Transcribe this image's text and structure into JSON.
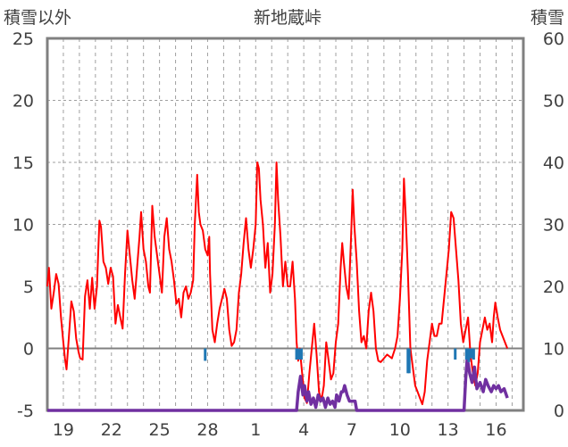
{
  "chart_data": {
    "type": "line",
    "title": "新地蔵峠",
    "left_axis_label": "積雪以外",
    "right_axis_label": "積雪",
    "left_ylim": [
      -5,
      25
    ],
    "right_ylim": [
      0,
      60
    ],
    "left_ticks": [
      "25",
      "20",
      "15",
      "10",
      "5",
      "0",
      "-5"
    ],
    "right_ticks": [
      "60",
      "50",
      "40",
      "30",
      "20",
      "10",
      "0"
    ],
    "x_tick_labels": [
      "19",
      "22",
      "25",
      "28",
      "1",
      "4",
      "7",
      "10",
      "13",
      "16"
    ],
    "x_tick_days": [
      1,
      4,
      7,
      10,
      13,
      16,
      19,
      22,
      25,
      28
    ],
    "xlim_days": [
      0,
      29.7
    ],
    "grid": true,
    "colors": {
      "temperature": "#ff0000",
      "precipitation": "#1f77b4",
      "snow_depth": "#7030a0",
      "axis": "#808080",
      "grid": "#a0a0a0",
      "text": "#404040"
    },
    "series": [
      {
        "type": "line",
        "axis": "left",
        "color": "#ff0000",
        "points": [
          [
            0.0,
            5.0
          ],
          [
            0.1,
            6.5
          ],
          [
            0.25,
            3.2
          ],
          [
            0.4,
            4.5
          ],
          [
            0.55,
            6.0
          ],
          [
            0.7,
            5.2
          ],
          [
            0.85,
            2.5
          ],
          [
            1.0,
            0.5
          ],
          [
            1.1,
            -0.8
          ],
          [
            1.2,
            -1.7
          ],
          [
            1.35,
            1.0
          ],
          [
            1.5,
            3.8
          ],
          [
            1.65,
            3.0
          ],
          [
            1.8,
            0.8
          ],
          [
            1.95,
            -0.3
          ],
          [
            2.05,
            -0.8
          ],
          [
            2.2,
            -0.9
          ],
          [
            2.35,
            4.2
          ],
          [
            2.5,
            5.5
          ],
          [
            2.65,
            3.2
          ],
          [
            2.8,
            5.7
          ],
          [
            2.95,
            3.2
          ],
          [
            3.1,
            5.0
          ],
          [
            3.25,
            10.3
          ],
          [
            3.35,
            9.8
          ],
          [
            3.5,
            7.0
          ],
          [
            3.65,
            6.5
          ],
          [
            3.8,
            5.2
          ],
          [
            3.95,
            6.5
          ],
          [
            4.1,
            5.8
          ],
          [
            4.25,
            2.0
          ],
          [
            4.4,
            3.5
          ],
          [
            4.55,
            2.5
          ],
          [
            4.7,
            1.6
          ],
          [
            4.85,
            6.0
          ],
          [
            5.0,
            9.5
          ],
          [
            5.15,
            7.5
          ],
          [
            5.3,
            5.5
          ],
          [
            5.45,
            4.0
          ],
          [
            5.6,
            6.5
          ],
          [
            5.75,
            9.0
          ],
          [
            5.85,
            11.0
          ],
          [
            6.0,
            8.0
          ],
          [
            6.15,
            7.0
          ],
          [
            6.3,
            5.0
          ],
          [
            6.4,
            4.5
          ],
          [
            6.55,
            11.5
          ],
          [
            6.7,
            9.0
          ],
          [
            6.85,
            7.5
          ],
          [
            7.0,
            6.0
          ],
          [
            7.15,
            4.5
          ],
          [
            7.3,
            9.0
          ],
          [
            7.45,
            10.5
          ],
          [
            7.6,
            8.0
          ],
          [
            7.75,
            7.0
          ],
          [
            7.9,
            5.5
          ],
          [
            8.05,
            3.6
          ],
          [
            8.2,
            4.0
          ],
          [
            8.35,
            2.5
          ],
          [
            8.5,
            4.5
          ],
          [
            8.65,
            5.0
          ],
          [
            8.8,
            4.0
          ],
          [
            8.95,
            4.5
          ],
          [
            9.1,
            5.5
          ],
          [
            9.2,
            10.0
          ],
          [
            9.35,
            14.0
          ],
          [
            9.45,
            11.0
          ],
          [
            9.55,
            10.0
          ],
          [
            9.7,
            9.5
          ],
          [
            9.85,
            8.0
          ],
          [
            10.0,
            7.5
          ],
          [
            10.1,
            9.0
          ],
          [
            10.15,
            6.0
          ],
          [
            10.3,
            1.5
          ],
          [
            10.45,
            0.5
          ],
          [
            10.6,
            2.0
          ],
          [
            10.75,
            3.2
          ],
          [
            10.9,
            4.0
          ],
          [
            11.05,
            4.8
          ],
          [
            11.2,
            4.0
          ],
          [
            11.35,
            1.5
          ],
          [
            11.5,
            0.2
          ],
          [
            11.65,
            0.5
          ],
          [
            11.8,
            1.5
          ],
          [
            11.95,
            4.5
          ],
          [
            12.1,
            6.0
          ],
          [
            12.25,
            8.5
          ],
          [
            12.4,
            10.5
          ],
          [
            12.55,
            8.0
          ],
          [
            12.7,
            6.5
          ],
          [
            12.85,
            8.0
          ],
          [
            13.0,
            10.0
          ],
          [
            13.1,
            15.0
          ],
          [
            13.2,
            14.5
          ],
          [
            13.3,
            12.0
          ],
          [
            13.45,
            10.0
          ],
          [
            13.6,
            6.5
          ],
          [
            13.75,
            8.5
          ],
          [
            13.9,
            4.5
          ],
          [
            14.05,
            6.0
          ],
          [
            14.2,
            10.0
          ],
          [
            14.3,
            15.0
          ],
          [
            14.4,
            12.0
          ],
          [
            14.55,
            9.0
          ],
          [
            14.7,
            5.0
          ],
          [
            14.85,
            7.0
          ],
          [
            15.0,
            5.0
          ],
          [
            15.15,
            5.0
          ],
          [
            15.3,
            7.0
          ],
          [
            15.45,
            4.0
          ],
          [
            15.55,
            0.5
          ],
          [
            15.65,
            -1.0
          ],
          [
            15.75,
            0.0
          ],
          [
            15.9,
            -2.0
          ],
          [
            16.05,
            -4.0
          ],
          [
            16.2,
            -4.4
          ],
          [
            16.35,
            -2.0
          ],
          [
            16.5,
            0.0
          ],
          [
            16.65,
            2.0
          ],
          [
            16.8,
            -0.5
          ],
          [
            16.95,
            -3.5
          ],
          [
            17.1,
            -4.2
          ],
          [
            17.25,
            -3.0
          ],
          [
            17.4,
            0.5
          ],
          [
            17.55,
            -1.0
          ],
          [
            17.7,
            -2.5
          ],
          [
            17.85,
            -2.0
          ],
          [
            18.0,
            0.5
          ],
          [
            18.15,
            2.0
          ],
          [
            18.3,
            6.5
          ],
          [
            18.4,
            8.5
          ],
          [
            18.5,
            7.0
          ],
          [
            18.65,
            5.0
          ],
          [
            18.8,
            4.0
          ],
          [
            18.95,
            9.0
          ],
          [
            19.05,
            12.8
          ],
          [
            19.15,
            10.0
          ],
          [
            19.3,
            7.0
          ],
          [
            19.45,
            3.0
          ],
          [
            19.6,
            0.5
          ],
          [
            19.75,
            1.0
          ],
          [
            19.9,
            0.0
          ],
          [
            20.05,
            3.0
          ],
          [
            20.2,
            4.5
          ],
          [
            20.35,
            3.0
          ],
          [
            20.5,
            0.0
          ],
          [
            20.65,
            -1.0
          ],
          [
            20.8,
            -1.1
          ],
          [
            21.0,
            -0.8
          ],
          [
            21.2,
            -0.5
          ],
          [
            21.5,
            -0.8
          ],
          [
            21.7,
            0.0
          ],
          [
            21.85,
            1.0
          ],
          [
            22.0,
            4.0
          ],
          [
            22.15,
            8.0
          ],
          [
            22.25,
            13.7
          ],
          [
            22.35,
            11.0
          ],
          [
            22.5,
            6.0
          ],
          [
            22.65,
            0.0
          ],
          [
            22.8,
            -1.5
          ],
          [
            22.95,
            -3.0
          ],
          [
            23.1,
            -3.5
          ],
          [
            23.25,
            -4.0
          ],
          [
            23.4,
            -4.5
          ],
          [
            23.55,
            -3.5
          ],
          [
            23.7,
            -1.0
          ],
          [
            23.85,
            0.5
          ],
          [
            24.0,
            2.0
          ],
          [
            24.15,
            1.0
          ],
          [
            24.3,
            1.0
          ],
          [
            24.45,
            2.0
          ],
          [
            24.6,
            2.0
          ],
          [
            24.75,
            4.0
          ],
          [
            24.9,
            6.0
          ],
          [
            25.05,
            8.0
          ],
          [
            25.2,
            11.0
          ],
          [
            25.35,
            10.5
          ],
          [
            25.5,
            8.0
          ],
          [
            25.65,
            5.5
          ],
          [
            25.8,
            2.0
          ],
          [
            25.95,
            0.5
          ],
          [
            26.1,
            1.5
          ],
          [
            26.25,
            2.5
          ],
          [
            26.4,
            -0.5
          ],
          [
            26.55,
            -2.0
          ],
          [
            26.7,
            -3.0
          ],
          [
            26.85,
            -2.0
          ],
          [
            27.0,
            0.5
          ],
          [
            27.15,
            1.5
          ],
          [
            27.3,
            2.5
          ],
          [
            27.45,
            1.5
          ],
          [
            27.6,
            2.0
          ],
          [
            27.75,
            0.5
          ],
          [
            27.85,
            2.5
          ],
          [
            27.95,
            3.7
          ],
          [
            28.1,
            2.5
          ],
          [
            28.25,
            1.5
          ],
          [
            28.4,
            1.0
          ],
          [
            28.55,
            0.5
          ],
          [
            28.7,
            0.0
          ]
        ]
      },
      {
        "type": "line",
        "axis": "right",
        "color": "#7030a0",
        "points": [
          [
            0.0,
            0.0
          ],
          [
            15.55,
            0.0
          ],
          [
            15.65,
            3.0
          ],
          [
            15.8,
            5.5
          ],
          [
            15.95,
            2.5
          ],
          [
            16.05,
            4.0
          ],
          [
            16.2,
            1.5
          ],
          [
            16.3,
            3.0
          ],
          [
            16.45,
            1.0
          ],
          [
            16.6,
            2.0
          ],
          [
            16.75,
            0.5
          ],
          [
            16.9,
            2.5
          ],
          [
            17.05,
            1.5
          ],
          [
            17.2,
            2.0
          ],
          [
            17.35,
            0.5
          ],
          [
            17.5,
            2.0
          ],
          [
            17.65,
            1.0
          ],
          [
            17.8,
            1.5
          ],
          [
            17.95,
            0.5
          ],
          [
            18.05,
            2.5
          ],
          [
            18.2,
            1.5
          ],
          [
            18.35,
            3.0
          ],
          [
            18.45,
            3.0
          ],
          [
            18.55,
            4.0
          ],
          [
            18.7,
            2.5
          ],
          [
            18.85,
            1.5
          ],
          [
            18.95,
            1.5
          ],
          [
            19.1,
            1.5
          ],
          [
            19.2,
            1.5
          ],
          [
            19.3,
            0.0
          ],
          [
            26.0,
            0.0
          ],
          [
            26.1,
            5.0
          ],
          [
            26.2,
            8.5
          ],
          [
            26.35,
            6.0
          ],
          [
            26.5,
            4.5
          ],
          [
            26.65,
            7.0
          ],
          [
            26.8,
            3.5
          ],
          [
            27.0,
            4.5
          ],
          [
            27.2,
            3.0
          ],
          [
            27.35,
            5.0
          ],
          [
            27.5,
            4.0
          ],
          [
            27.7,
            3.0
          ],
          [
            27.85,
            4.0
          ],
          [
            28.0,
            3.5
          ],
          [
            28.15,
            4.0
          ],
          [
            28.3,
            3.0
          ],
          [
            28.5,
            3.5
          ],
          [
            28.7,
            2.0
          ]
        ]
      },
      {
        "type": "bar",
        "axis": "left",
        "color": "#1f77b4",
        "bars": [
          [
            9.85,
            1.0
          ],
          [
            15.55,
            0.9
          ],
          [
            15.7,
            0.9
          ],
          [
            15.85,
            0.9
          ],
          [
            22.5,
            2.0
          ],
          [
            22.58,
            2.0
          ],
          [
            25.45,
            0.9
          ],
          [
            26.15,
            0.9
          ],
          [
            26.3,
            1.1
          ],
          [
            26.45,
            0.8
          ],
          [
            26.6,
            0.9
          ]
        ]
      }
    ]
  }
}
